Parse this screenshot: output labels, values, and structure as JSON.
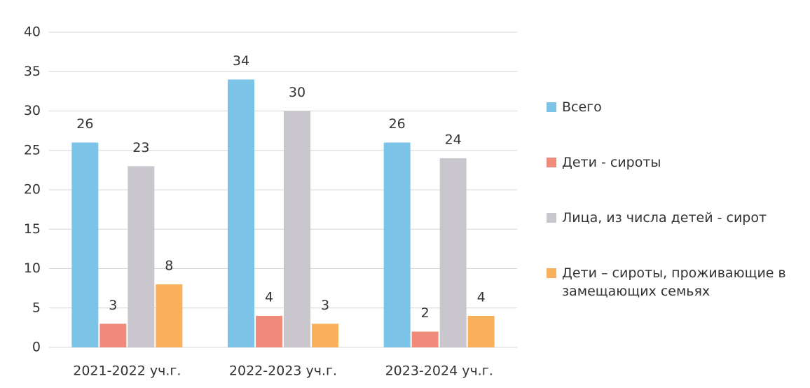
{
  "chart_data": {
    "type": "bar",
    "categories": [
      "2021-2022 уч.г.",
      "2022-2023 уч.г.",
      "2023-2024 уч.г."
    ],
    "series": [
      {
        "name": "Всего",
        "color": "#7cc3e8",
        "values": [
          26,
          34,
          26
        ]
      },
      {
        "name": "Дети - сироты",
        "color": "#f08a7a",
        "values": [
          3,
          4,
          2
        ]
      },
      {
        "name": "Лица, из числа детей - сирот",
        "color": "#c9c7cd",
        "values": [
          23,
          30,
          24
        ]
      },
      {
        "name": "Дети – сироты, проживающие в замещающих семьях",
        "color": "#f9b05a",
        "values": [
          8,
          3,
          4
        ]
      }
    ],
    "ylim": [
      0,
      40
    ],
    "yticks": [
      0,
      5,
      10,
      15,
      20,
      25,
      30,
      35,
      40
    ],
    "grid": true,
    "legend": "right"
  }
}
